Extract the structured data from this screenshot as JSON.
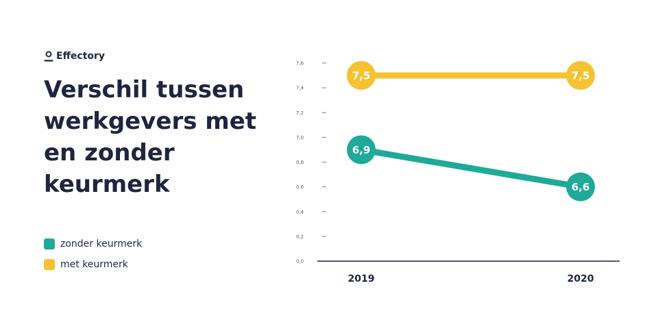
{
  "brand": {
    "name": "Effectory",
    "icon": "person-outline-icon"
  },
  "title": "Verschil tussen werkgevers met en zonder keurmerk",
  "legend": [
    {
      "label": "zonder keurmerk",
      "color": "#1fa99a"
    },
    {
      "label": "met keurmerk",
      "color": "#f5c332"
    }
  ],
  "chart_data": {
    "type": "line",
    "categories": [
      "2019",
      "2020"
    ],
    "yticks": [
      "0,0",
      "0,2",
      "0,4",
      "0,6",
      "0,8",
      "7,0",
      "7,2",
      "7,4",
      "7,6"
    ],
    "grid": false,
    "series": [
      {
        "name": "zonder keurmerk",
        "values": [
          6.9,
          6.6
        ],
        "labels": [
          "6,9",
          "6,6"
        ],
        "color": "#1fa99a"
      },
      {
        "name": "met keurmerk",
        "values": [
          7.5,
          7.5
        ],
        "labels": [
          "7,5",
          "7,5"
        ],
        "color": "#f5c332"
      }
    ]
  }
}
